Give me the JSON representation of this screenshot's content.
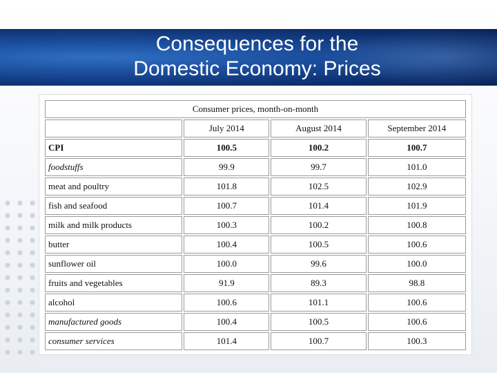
{
  "slide": {
    "title_line1": "Consequences for the",
    "title_line2": "Domestic Economy: Prices"
  },
  "table": {
    "caption": "Consumer prices, month-on-month",
    "columns": [
      "July 2014",
      "August 2014",
      "September 2014"
    ],
    "rows": [
      {
        "label": "CPI",
        "values": [
          "100.5",
          "100.2",
          "100.7"
        ],
        "style": "bold"
      },
      {
        "label": "foodstuffs",
        "values": [
          "99.9",
          "99.7",
          "101.0"
        ],
        "style": "italic"
      },
      {
        "label": "meat and poultry",
        "values": [
          "101.8",
          "102.5",
          "102.9"
        ],
        "style": "normal"
      },
      {
        "label": "fish and seafood",
        "values": [
          "100.7",
          "101.4",
          "101.9"
        ],
        "style": "normal"
      },
      {
        "label": "milk and milk products",
        "values": [
          "100.3",
          "100.2",
          "100.8"
        ],
        "style": "normal"
      },
      {
        "label": "butter",
        "values": [
          "100.4",
          "100.5",
          "100.6"
        ],
        "style": "normal"
      },
      {
        "label": "sunflower oil",
        "values": [
          "100.0",
          "99.6",
          "100.0"
        ],
        "style": "normal"
      },
      {
        "label": "fruits and vegetables",
        "values": [
          "91.9",
          "89.3",
          "98.8"
        ],
        "style": "normal"
      },
      {
        "label": "alcohol",
        "values": [
          "100.6",
          "101.1",
          "100.6"
        ],
        "style": "normal"
      },
      {
        "label": "manufactured goods",
        "values": [
          "100.4",
          "100.5",
          "100.6"
        ],
        "style": "italic"
      },
      {
        "label": "consumer services",
        "values": [
          "101.4",
          "100.7",
          "100.3"
        ],
        "style": "italic"
      }
    ]
  },
  "colors": {
    "banner": "#1a4c9a",
    "title_text": "#ffffff"
  }
}
